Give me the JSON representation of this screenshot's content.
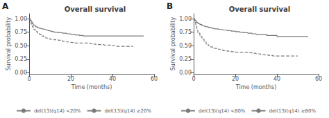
{
  "chart_data": [
    {
      "type": "step",
      "title": "Overall survival",
      "annotation": "A",
      "x_label": "Time (months)",
      "y_label": "Survival probability",
      "xlim": [
        0,
        60
      ],
      "ylim": [
        -0.02,
        1.09
      ],
      "xticks": [
        0,
        20,
        40,
        60
      ],
      "yticks": [
        {
          "value": 0.0,
          "label": "0.00"
        },
        0.25,
        {
          "value": 0.5,
          "label": "0.50"
        },
        0.75,
        {
          "value": 1.0,
          "label": "1.00"
        }
      ],
      "grid": false,
      "legend": "bottom",
      "series": [
        {
          "name": "del(13)(q14) <20%",
          "color": "#7a7a7a",
          "line_style": "solid",
          "x": [
            0,
            0.5,
            1,
            1.5,
            2,
            3,
            4,
            5,
            6,
            7,
            8,
            9,
            10,
            11,
            12,
            14,
            16,
            18,
            20,
            22,
            24,
            26,
            28,
            55
          ],
          "values": [
            1.0,
            0.97,
            0.94,
            0.91,
            0.88,
            0.85,
            0.83,
            0.82,
            0.81,
            0.8,
            0.79,
            0.78,
            0.77,
            0.76,
            0.75,
            0.74,
            0.73,
            0.72,
            0.71,
            0.7,
            0.69,
            0.68,
            0.68,
            0.68
          ]
        },
        {
          "name": "del(13)(q14) ≥20%",
          "color": "#7a7a7a",
          "line_style": "dashed",
          "x": [
            0,
            0.5,
            1,
            1.5,
            2,
            3,
            4,
            5,
            6,
            7,
            8,
            9,
            10,
            12,
            14,
            16,
            18,
            20,
            22,
            24,
            26,
            28,
            30,
            32,
            34,
            36,
            38,
            40,
            42,
            44,
            50
          ],
          "values": [
            1.0,
            0.95,
            0.9,
            0.85,
            0.8,
            0.76,
            0.73,
            0.71,
            0.68,
            0.66,
            0.64,
            0.63,
            0.62,
            0.61,
            0.6,
            0.58,
            0.57,
            0.56,
            0.55,
            0.55,
            0.55,
            0.54,
            0.53,
            0.52,
            0.52,
            0.51,
            0.51,
            0.5,
            0.49,
            0.49,
            0.49
          ]
        }
      ]
    },
    {
      "type": "step",
      "title": "Overall survival",
      "annotation": "B",
      "x_label": "Time (months)",
      "y_label": "Survival probability",
      "xlim": [
        0,
        60
      ],
      "ylim": [
        -0.02,
        1.09
      ],
      "xticks": [
        0,
        20,
        40,
        60
      ],
      "yticks": [
        {
          "value": 0.0,
          "label": "0.00"
        },
        0.25,
        {
          "value": 0.5,
          "label": "0.50"
        },
        0.75,
        {
          "value": 1.0,
          "label": "1.00"
        }
      ],
      "grid": false,
      "legend": "bottom",
      "series": [
        {
          "name": "del(13)(q14) <80%",
          "color": "#7a7a7a",
          "line_style": "solid",
          "x": [
            0,
            0.5,
            1,
            1.5,
            2,
            3,
            4,
            5,
            6,
            7,
            8,
            9,
            10,
            12,
            14,
            16,
            18,
            20,
            22,
            24,
            26,
            28,
            30,
            35,
            40,
            55
          ],
          "values": [
            1.0,
            0.97,
            0.95,
            0.93,
            0.91,
            0.89,
            0.87,
            0.86,
            0.85,
            0.84,
            0.83,
            0.82,
            0.81,
            0.8,
            0.79,
            0.78,
            0.77,
            0.76,
            0.75,
            0.74,
            0.73,
            0.72,
            0.71,
            0.69,
            0.67,
            0.67
          ]
        },
        {
          "name": "del(13)(q14) ≥80%",
          "color": "#7a7a7a",
          "line_style": "dashed",
          "x": [
            0,
            0.5,
            1,
            1.5,
            2,
            3,
            4,
            5,
            6,
            7,
            8,
            9,
            10,
            12,
            14,
            16,
            18,
            20,
            22,
            24,
            26,
            28,
            30,
            32,
            34,
            36,
            38,
            40,
            50
          ],
          "values": [
            1.0,
            0.93,
            0.86,
            0.79,
            0.73,
            0.67,
            0.62,
            0.57,
            0.53,
            0.5,
            0.48,
            0.46,
            0.45,
            0.43,
            0.41,
            0.4,
            0.39,
            0.38,
            0.38,
            0.38,
            0.37,
            0.36,
            0.35,
            0.34,
            0.33,
            0.32,
            0.31,
            0.31,
            0.31
          ]
        }
      ]
    }
  ]
}
